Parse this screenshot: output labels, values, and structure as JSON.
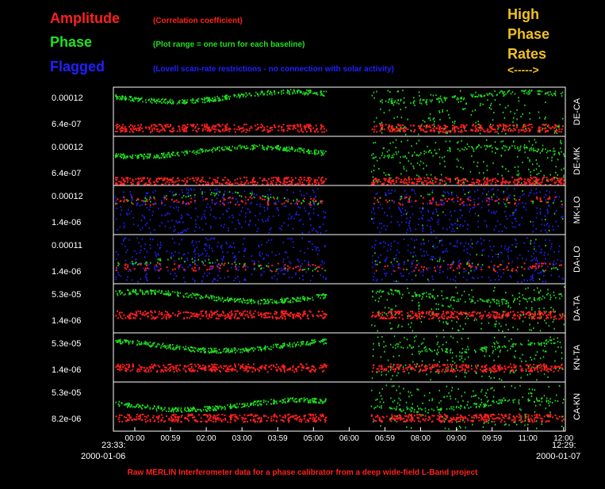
{
  "legend": {
    "amplitude": {
      "label": "Amplitude",
      "note": "(Correlation coefficient)",
      "color": "#ff2020"
    },
    "phase": {
      "label": "Phase",
      "note": "(Plot range = one turn for each baseline)",
      "color": "#20e020"
    },
    "flagged": {
      "label": "Flagged",
      "note": "(Lovell scan-rate restrictions - no connection with solar activity)",
      "color": "#2020ff"
    }
  },
  "high_phase_rates": {
    "line1": "High",
    "line2": "Phase",
    "line3": "Rates",
    "arrow": "<----->"
  },
  "time_axis": {
    "start_time": "23:33:",
    "start_date": "2000-01-06",
    "end_time": "12:29:",
    "end_date": "2000-01-07",
    "ticks": [
      "00:00",
      "00:59",
      "02:00",
      "03:00",
      "03:59",
      "05:00",
      "06:00",
      "06:59",
      "08:00",
      "09:00",
      "09:59",
      "11:00",
      "12:00"
    ]
  },
  "caption": "Raw MERLIN Interferometer data for a phase calibrator from a deep wide-field L-Band project",
  "chart_data": {
    "type": "scatter",
    "x_range": [
      "23:33",
      "12:29"
    ],
    "baselines": [
      {
        "name": "DE-CA",
        "amp_top": "0.00012",
        "amp_bottom": "6.4e-07",
        "phase_level": 0.18,
        "amp_level": 0.82,
        "flagged": false
      },
      {
        "name": "DE-MK",
        "amp_top": "0.00012",
        "amp_bottom": "6.4e-07",
        "phase_level": 0.3,
        "amp_level": 0.9,
        "flagged": false
      },
      {
        "name": "MK-LO",
        "amp_top": "0.00012",
        "amp_bottom": "1.4e-06",
        "phase_level": 0.25,
        "amp_level": 0.3,
        "flagged": true
      },
      {
        "name": "DA-LO",
        "amp_top": "0.00011",
        "amp_bottom": "1.4e-06",
        "phase_level": 0.6,
        "amp_level": 0.65,
        "flagged": true
      },
      {
        "name": "DA-TA",
        "amp_top": "5.3e-05",
        "amp_bottom": "1.4e-06",
        "phase_level": 0.25,
        "amp_level": 0.62,
        "flagged": false
      },
      {
        "name": "KN-TA",
        "amp_top": "5.3e-05",
        "amp_bottom": "1.4e-06",
        "phase_level": 0.25,
        "amp_level": 0.7,
        "flagged": false
      },
      {
        "name": "CA-KN",
        "amp_top": "5.3e-05",
        "amp_bottom": "8.2e-06",
        "phase_level": 0.45,
        "amp_level": 0.72,
        "flagged": false
      }
    ]
  }
}
